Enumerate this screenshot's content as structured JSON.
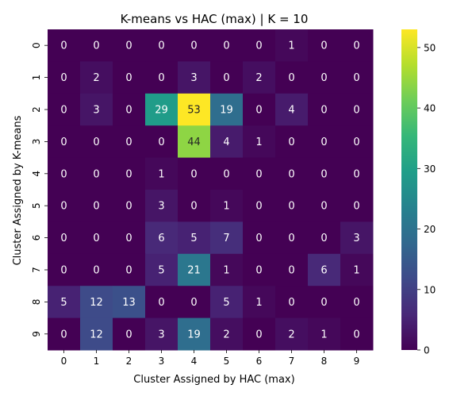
{
  "chart_data": {
    "type": "heatmap",
    "title": "K-means vs HAC (max) | K = 10",
    "xlabel": "Cluster Assigned by HAC (max)",
    "ylabel": "Cluster Assigned by K-means",
    "x_categories": [
      "0",
      "1",
      "2",
      "3",
      "4",
      "5",
      "6",
      "7",
      "8",
      "9"
    ],
    "y_categories": [
      "0",
      "1",
      "2",
      "3",
      "4",
      "5",
      "6",
      "7",
      "8",
      "9"
    ],
    "values": [
      [
        0,
        0,
        0,
        0,
        0,
        0,
        0,
        1,
        0,
        0
      ],
      [
        0,
        2,
        0,
        0,
        3,
        0,
        2,
        0,
        0,
        0
      ],
      [
        0,
        3,
        0,
        29,
        53,
        19,
        0,
        4,
        0,
        0
      ],
      [
        0,
        0,
        0,
        0,
        44,
        4,
        1,
        0,
        0,
        0
      ],
      [
        0,
        0,
        0,
        1,
        0,
        0,
        0,
        0,
        0,
        0
      ],
      [
        0,
        0,
        0,
        3,
        0,
        1,
        0,
        0,
        0,
        0
      ],
      [
        0,
        0,
        0,
        6,
        5,
        7,
        0,
        0,
        0,
        3
      ],
      [
        0,
        0,
        0,
        5,
        21,
        1,
        0,
        0,
        6,
        1
      ],
      [
        5,
        12,
        13,
        0,
        0,
        5,
        1,
        0,
        0,
        0
      ],
      [
        0,
        12,
        0,
        3,
        19,
        2,
        0,
        2,
        1,
        0
      ]
    ],
    "colormap": "viridis",
    "vmin": 0,
    "vmax": 53,
    "colorbar_ticks": [
      "0",
      "10",
      "20",
      "30",
      "40",
      "50"
    ],
    "grid": false,
    "legend": "colorbar-right"
  }
}
